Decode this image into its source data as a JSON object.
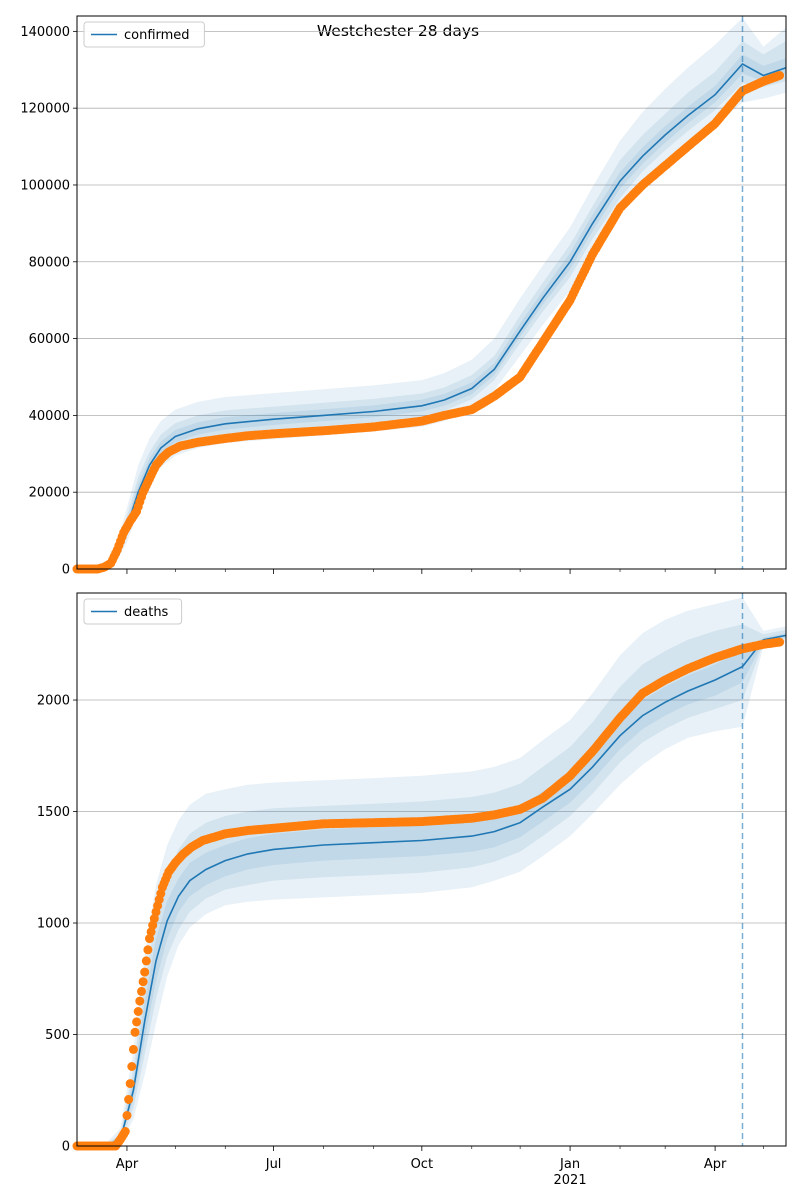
{
  "figure": {
    "title": "Westchester 28 days"
  },
  "colors": {
    "model": "#1f77b4",
    "observed": "#ff7f0e",
    "band": "#1f77b4",
    "grid": "#b0b0b0",
    "forecast_line": "#1f77b4"
  },
  "x_axis": {
    "start": "2020-03-01",
    "end": "2021-05-15",
    "labels": [
      {
        "date": "2020-04-01",
        "text": "Apr",
        "sub": ""
      },
      {
        "date": "2020-07-01",
        "text": "Jul",
        "sub": ""
      },
      {
        "date": "2020-10-01",
        "text": "Oct",
        "sub": ""
      },
      {
        "date": "2021-01-01",
        "text": "Jan",
        "sub": "2021"
      },
      {
        "date": "2021-04-01",
        "text": "Apr",
        "sub": ""
      }
    ],
    "minor_ticks": [
      "2020-05-01",
      "2020-06-01",
      "2020-08-01",
      "2020-09-01",
      "2020-11-01",
      "2020-12-01",
      "2021-02-01",
      "2021-03-01",
      "2021-05-01"
    ],
    "forecast_start": "2021-04-18"
  },
  "chart_data": [
    {
      "type": "line",
      "panel": "top",
      "legend": "confirmed",
      "legend_position": "top-left",
      "grid": "horizontal",
      "yticks": [
        0,
        20000,
        40000,
        60000,
        80000,
        100000,
        120000,
        140000
      ],
      "ylim": [
        0,
        144000
      ],
      "model": {
        "x": [
          "2020-03-01",
          "2020-03-16",
          "2020-03-24",
          "2020-04-01",
          "2020-04-08",
          "2020-04-15",
          "2020-04-22",
          "2020-05-01",
          "2020-05-15",
          "2020-06-01",
          "2020-07-01",
          "2020-08-01",
          "2020-09-01",
          "2020-10-01",
          "2020-10-15",
          "2020-11-01",
          "2020-11-15",
          "2020-12-01",
          "2020-12-15",
          "2021-01-01",
          "2021-01-15",
          "2021-02-01",
          "2021-02-15",
          "2021-03-01",
          "2021-03-15",
          "2021-04-01",
          "2021-04-18",
          "2021-05-01",
          "2021-05-15"
        ],
        "y": [
          0,
          0,
          2000,
          11000,
          20000,
          27000,
          31500,
          34500,
          36500,
          37800,
          39000,
          40000,
          41000,
          42500,
          44000,
          47000,
          52000,
          62000,
          70500,
          80000,
          90000,
          101000,
          107500,
          113000,
          118000,
          123500,
          131500,
          128500,
          130500
        ],
        "bands": [
          {
            "lower": [
              0,
              0,
              1000,
              7000,
              15000,
              22000,
              26500,
              29500,
              31500,
              32800,
              33800,
              34800,
              35800,
              37000,
              38500,
              41500,
              46500,
              55500,
              63500,
              72500,
              82000,
              92500,
              99500,
              105000,
              110000,
              115500,
              121500,
              122500,
              124000
            ],
            "upper": [
              0,
              50,
              4000,
              16000,
              27000,
              34000,
              38500,
              41500,
              43500,
              44800,
              45800,
              46800,
              47800,
              49200,
              51000,
              54500,
              60000,
              70500,
              79000,
              89000,
              99500,
              111500,
              119000,
              125000,
              130500,
              136500,
              143500,
              136000,
              141000
            ]
          },
          {
            "lower": [
              0,
              0,
              1300,
              8500,
              17000,
              24500,
              28800,
              31800,
              33800,
              35100,
              36200,
              37200,
              38200,
              39600,
              41200,
              44200,
              49200,
              58800,
              67000,
              76000,
              86000,
              96500,
              103500,
              109000,
              114000,
              119500,
              126500,
              125500,
              127000
            ],
            "upper": [
              0,
              20,
              3000,
              13800,
              24000,
              30500,
              35000,
              38000,
              40000,
              41300,
              42300,
              43300,
              44300,
              45700,
              47300,
              50500,
              55500,
              66000,
              74500,
              84500,
              94500,
              106500,
              113000,
              118500,
              124000,
              129500,
              137500,
              134000,
              137500
            ]
          },
          {
            "lower": [
              0,
              0,
              1600,
              9500,
              18200,
              25600,
              30000,
              33000,
              35000,
              36300,
              37500,
              38500,
              39500,
              41000,
              42500,
              45500,
              50500,
              60500,
              68800,
              78000,
              88000,
              99000,
              105500,
              111000,
              116000,
              121500,
              129000,
              127000,
              129000
            ],
            "upper": [
              0,
              10,
              2500,
              12500,
              22000,
              28800,
              33200,
              36200,
              38200,
              39500,
              40600,
              41600,
              42600,
              44100,
              45600,
              48600,
              53600,
              64000,
              72300,
              82300,
              92300,
              103300,
              109800,
              115300,
              120300,
              125800,
              134000,
              131000,
              133000
            ]
          }
        ]
      },
      "observed": {
        "x": [
          "2020-03-01",
          "2020-03-14",
          "2020-03-18",
          "2020-03-22",
          "2020-03-26",
          "2020-03-30",
          "2020-04-03",
          "2020-04-07",
          "2020-04-11",
          "2020-04-15",
          "2020-04-19",
          "2020-04-23",
          "2020-04-27",
          "2020-05-04",
          "2020-05-15",
          "2020-06-01",
          "2020-06-15",
          "2020-07-01",
          "2020-08-01",
          "2020-09-01",
          "2020-10-01",
          "2020-10-15",
          "2020-11-01",
          "2020-11-15",
          "2020-12-01",
          "2020-12-15",
          "2021-01-01",
          "2021-01-15",
          "2021-02-01",
          "2021-02-15",
          "2021-03-01",
          "2021-03-15",
          "2021-04-01",
          "2021-04-18",
          "2021-05-01",
          "2021-05-11"
        ],
        "y": [
          0,
          0,
          500,
          1500,
          5000,
          9500,
          12500,
          15000,
          20000,
          23500,
          27000,
          29000,
          30500,
          32000,
          33000,
          34000,
          34700,
          35200,
          36000,
          37000,
          38500,
          40000,
          41500,
          45000,
          50000,
          59000,
          70000,
          82000,
          94000,
          100000,
          105000,
          110000,
          116000,
          124500,
          127000,
          128500
        ]
      }
    },
    {
      "type": "line",
      "panel": "bottom",
      "legend": "deaths",
      "legend_position": "top-left",
      "grid": "horizontal",
      "yticks": [
        0,
        500,
        1000,
        1500,
        2000
      ],
      "ylim": [
        0,
        2480
      ],
      "model": {
        "x": [
          "2020-03-01",
          "2020-03-18",
          "2020-03-28",
          "2020-04-05",
          "2020-04-12",
          "2020-04-19",
          "2020-04-26",
          "2020-05-03",
          "2020-05-10",
          "2020-05-20",
          "2020-06-01",
          "2020-06-15",
          "2020-07-01",
          "2020-08-01",
          "2020-09-01",
          "2020-10-01",
          "2020-11-01",
          "2020-11-15",
          "2020-12-01",
          "2020-12-15",
          "2021-01-01",
          "2021-01-15",
          "2021-02-01",
          "2021-02-15",
          "2021-03-01",
          "2021-03-15",
          "2021-04-01",
          "2021-04-18",
          "2021-05-01",
          "2021-05-15"
        ],
        "y": [
          0,
          0,
          30,
          250,
          560,
          830,
          1010,
          1120,
          1190,
          1240,
          1280,
          1310,
          1330,
          1350,
          1360,
          1370,
          1390,
          1410,
          1450,
          1520,
          1600,
          1700,
          1840,
          1930,
          1990,
          2040,
          2090,
          2150,
          2270,
          2290
        ],
        "bands": [
          {
            "lower": [
              0,
              0,
              10,
              120,
              320,
              550,
              760,
              900,
              980,
              1040,
              1080,
              1095,
              1105,
              1115,
              1125,
              1135,
              1160,
              1190,
              1230,
              1300,
              1390,
              1490,
              1620,
              1710,
              1780,
              1830,
              1860,
              1880,
              2240,
              2260
            ],
            "upper": [
              0,
              5,
              80,
              430,
              860,
              1170,
              1350,
              1460,
              1530,
              1580,
              1600,
              1620,
              1630,
              1640,
              1650,
              1660,
              1680,
              1700,
              1740,
              1820,
              1910,
              2030,
              2200,
              2300,
              2360,
              2400,
              2430,
              2460,
              2310,
              2330
            ]
          },
          {
            "lower": [
              0,
              0,
              15,
              170,
              410,
              660,
              850,
              970,
              1050,
              1110,
              1150,
              1170,
              1190,
              1205,
              1215,
              1225,
              1250,
              1275,
              1320,
              1390,
              1480,
              1580,
              1720,
              1810,
              1870,
              1920,
              1960,
              2000,
              2255,
              2275
            ],
            "upper": [
              0,
              2,
              55,
              350,
              730,
              1030,
              1220,
              1330,
              1400,
              1450,
              1480,
              1500,
              1515,
              1525,
              1535,
              1545,
              1565,
              1585,
              1625,
              1700,
              1790,
              1900,
              2060,
              2160,
              2220,
              2270,
              2310,
              2340,
              2295,
              2315
            ]
          },
          {
            "lower": [
              0,
              0,
              20,
              210,
              480,
              740,
              930,
              1050,
              1120,
              1170,
              1210,
              1240,
              1260,
              1280,
              1290,
              1300,
              1320,
              1340,
              1385,
              1455,
              1540,
              1640,
              1780,
              1870,
              1930,
              1980,
              2020,
              2080,
              2262,
              2282
            ],
            "upper": [
              0,
              1,
              45,
              300,
              650,
              930,
              1100,
              1200,
              1270,
              1315,
              1350,
              1380,
              1400,
              1420,
              1430,
              1440,
              1460,
              1480,
              1520,
              1590,
              1670,
              1770,
              1910,
              2000,
              2060,
              2110,
              2160,
              2220,
              2280,
              2300
            ]
          }
        ]
      },
      "observed": {
        "x": [
          "2020-03-01",
          "2020-03-25",
          "2020-03-28",
          "2020-03-31",
          "2020-04-03",
          "2020-04-06",
          "2020-04-09",
          "2020-04-12",
          "2020-04-15",
          "2020-04-19",
          "2020-04-23",
          "2020-04-27",
          "2020-05-01",
          "2020-05-06",
          "2020-05-11",
          "2020-05-18",
          "2020-06-01",
          "2020-06-15",
          "2020-07-01",
          "2020-08-01",
          "2020-09-01",
          "2020-10-01",
          "2020-11-01",
          "2020-11-15",
          "2020-12-01",
          "2020-12-15",
          "2021-01-01",
          "2021-01-15",
          "2021-02-01",
          "2021-02-15",
          "2021-03-01",
          "2021-03-15",
          "2021-04-01",
          "2021-04-18",
          "2021-05-01",
          "2021-05-11"
        ],
        "y": [
          0,
          0,
          30,
          65,
          280,
          510,
          650,
          780,
          930,
          1050,
          1160,
          1230,
          1270,
          1310,
          1340,
          1370,
          1400,
          1415,
          1425,
          1445,
          1450,
          1455,
          1470,
          1485,
          1510,
          1560,
          1660,
          1770,
          1920,
          2030,
          2090,
          2140,
          2190,
          2230,
          2250,
          2260
        ]
      }
    }
  ]
}
